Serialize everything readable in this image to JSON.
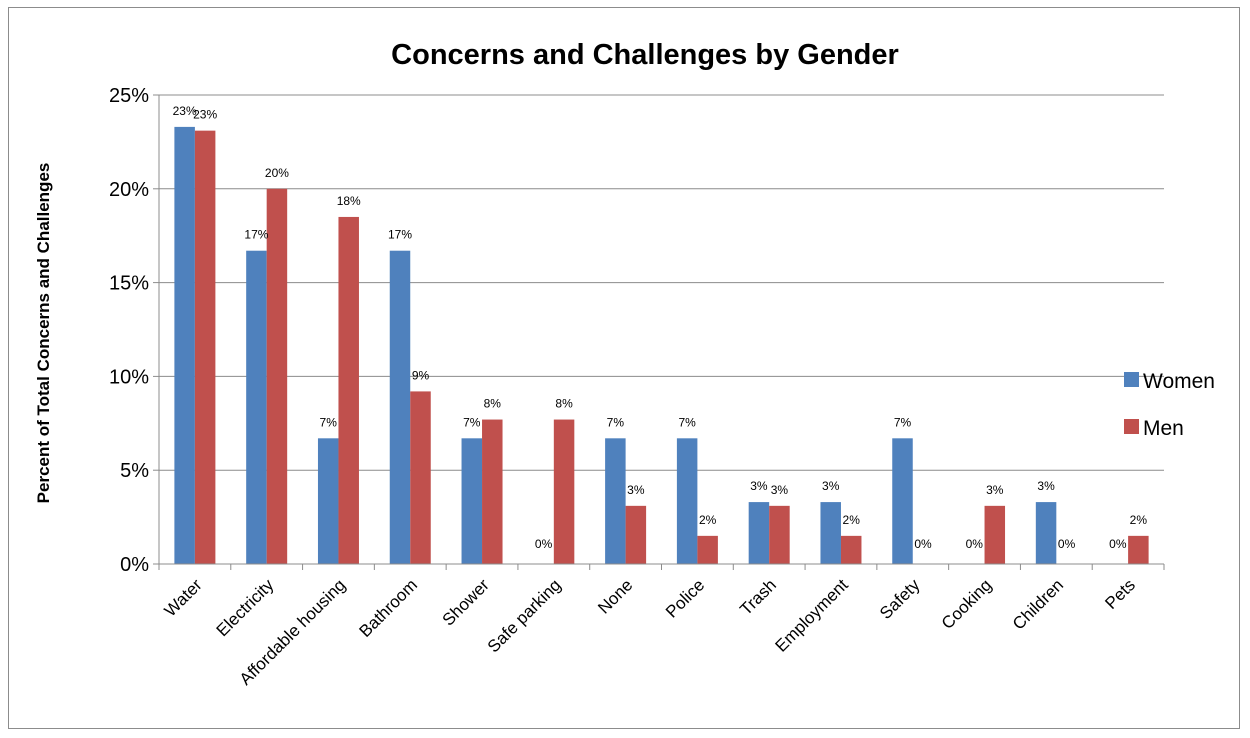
{
  "chart_data": {
    "type": "bar",
    "title": "Concerns and Challenges by Gender",
    "ylabel": "Percent of Total Concerns and Challenges",
    "xlabel": "",
    "ylim": [
      0,
      25
    ],
    "yticks": [
      "0%",
      "5%",
      "10%",
      "15%",
      "20%",
      "25%"
    ],
    "grid": true,
    "legend_position": "right",
    "categories": [
      "Water",
      "Electricity",
      "Affordable housing",
      "Bathroom",
      "Shower",
      "Safe parking",
      "None",
      "Police",
      "Trash",
      "Employment",
      "Safety",
      "Cooking",
      "Children",
      "Pets"
    ],
    "series": [
      {
        "name": "Women",
        "color": "#4F81BD",
        "values": [
          23.3,
          16.7,
          6.7,
          16.7,
          6.7,
          0,
          6.7,
          6.7,
          3.3,
          3.3,
          6.7,
          0,
          3.3,
          0
        ],
        "labels": [
          "23%",
          "17%",
          "7%",
          "17%",
          "7%",
          "0%",
          "7%",
          "7%",
          "3%",
          "3%",
          "7%",
          "0%",
          "3%",
          "0%"
        ]
      },
      {
        "name": "Men",
        "color": "#C0504D",
        "values": [
          23.1,
          20.0,
          18.5,
          9.2,
          7.7,
          7.7,
          3.1,
          1.5,
          3.1,
          1.5,
          0,
          3.1,
          0,
          1.5
        ],
        "labels": [
          "23%",
          "20%",
          "18%",
          "9%",
          "8%",
          "8%",
          "3%",
          "2%",
          "3%",
          "2%",
          "0%",
          "3%",
          "0%",
          "2%"
        ]
      }
    ]
  }
}
